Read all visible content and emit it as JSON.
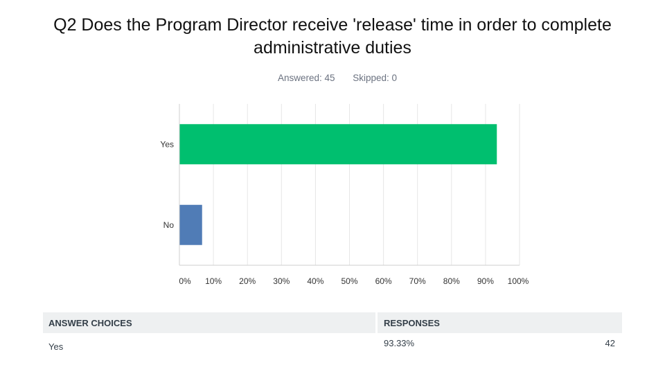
{
  "title": {
    "line1": "Q2 Does the Program Director receive 'release' time in order to complete",
    "line2": "administrative duties"
  },
  "meta": {
    "answered": "Answered: 45",
    "skipped": "Skipped: 0"
  },
  "chart_data": {
    "type": "bar",
    "orientation": "horizontal",
    "categories": [
      "Yes",
      "No"
    ],
    "values": [
      93.33,
      6.67
    ],
    "colors": [
      "#00bf6f",
      "#507cb6"
    ],
    "xlim": [
      0,
      100
    ],
    "xticks": [
      "0%",
      "10%",
      "20%",
      "30%",
      "40%",
      "50%",
      "60%",
      "70%",
      "80%",
      "90%",
      "100%"
    ],
    "grid": true
  },
  "table": {
    "headers": [
      "ANSWER CHOICES",
      "RESPONSES"
    ],
    "rows": [
      {
        "choice": "Yes",
        "percent": "93.33%",
        "count": "42"
      }
    ]
  }
}
